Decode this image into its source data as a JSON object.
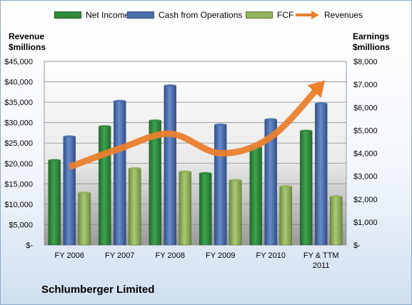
{
  "chart_data": {
    "type": "bar",
    "title": "Schlumberger Limited",
    "categories": [
      "FY 2006",
      "FY 2007",
      "FY 2008",
      "FY 2009",
      "FY 2010",
      "FY & TTM 2011"
    ],
    "left_axis": {
      "label_line1": "Revenue",
      "label_line2": "$millions",
      "ylim": [
        0,
        45000
      ],
      "ticks": [
        "$-",
        "$5,000",
        "$10,000",
        "$15,000",
        "$20,000",
        "$25,000",
        "$30,000",
        "$35,000",
        "$40,000",
        "$45,000"
      ]
    },
    "right_axis": {
      "label_line1": "Earnings",
      "label_line2": "$millions",
      "ylim": [
        0,
        8000
      ],
      "ticks": [
        "$-",
        "$1,000",
        "$2,000",
        "$3,000",
        "$4,000",
        "$5,000",
        "$6,000",
        "$7,000",
        "$8,000"
      ]
    },
    "series": [
      {
        "name": "Net Income",
        "type": "bar",
        "axis": "left",
        "color": "#2e8b3a",
        "values": [
          20800,
          29100,
          30500,
          17600,
          24000,
          28000
        ]
      },
      {
        "name": "Cash from Operations",
        "type": "bar",
        "axis": "left",
        "color": "#4a6fae",
        "values": [
          26600,
          35300,
          39100,
          29500,
          30800,
          34700
        ]
      },
      {
        "name": "FCF",
        "type": "bar",
        "axis": "left",
        "color": "#93b35a",
        "values": [
          12800,
          18800,
          18000,
          15900,
          14400,
          11900
        ]
      },
      {
        "name": "Revenues",
        "type": "line",
        "axis": "right",
        "color": "#ea7f2d",
        "values": [
          3400,
          4200,
          4850,
          4000,
          4700,
          7000
        ]
      }
    ],
    "grid": true,
    "legend_position": "top"
  }
}
